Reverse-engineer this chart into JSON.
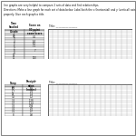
{
  "title_text": "line graphs are very helpful to compare 2 sets of data and find relationships.\nDirections: Make a line graph for each set of data below. Label both the x (horizontal) and y (vertical) axis properly. Give each graph a title.",
  "sec1_headers": [
    "Time\nStudied\n(Grade\n7)",
    "Score on\n80 point\nexam score"
  ],
  "sec1_rows": [
    [
      "",
      "0"
    ],
    [
      "1",
      ""
    ],
    [
      "2",
      "4.1"
    ],
    [
      "3",
      ""
    ],
    [
      "4",
      "5.4"
    ],
    [
      "5",
      "6.1"
    ],
    [
      "6",
      "7.1"
    ],
    [
      "7",
      ""
    ],
    [
      "8",
      "7"
    ],
    [
      "9",
      ""
    ],
    [
      "10",
      ""
    ],
    [
      "11",
      "120"
    ]
  ],
  "sec2_headers": [
    "Temp\n(F)",
    "Precipit-\nation\n(inches)"
  ],
  "sec2_rows": [
    [
      "10",
      "1.9"
    ],
    [
      "1.7",
      "1.8"
    ],
    [
      "25",
      "1.4"
    ],
    [
      "3.2",
      "1.2"
    ],
    [
      "3.3",
      "1.28"
    ],
    [
      "3.7",
      "1.14"
    ],
    [
      "3.8",
      "0.96"
    ],
    [
      "3.4",
      "0.9"
    ],
    [
      "3.1",
      "0.7"
    ],
    [
      "8",
      "0.8"
    ]
  ],
  "title_label": "Title:",
  "grid_rows": 14,
  "grid_cols": 16,
  "bg_color": "#ffffff",
  "border_color": "#555555",
  "grid_line_color": "#aaaaaa",
  "grid_border_color": "#555555",
  "header_bg": "#cccccc",
  "text_color": "#111111",
  "page_border_color": "#888888"
}
